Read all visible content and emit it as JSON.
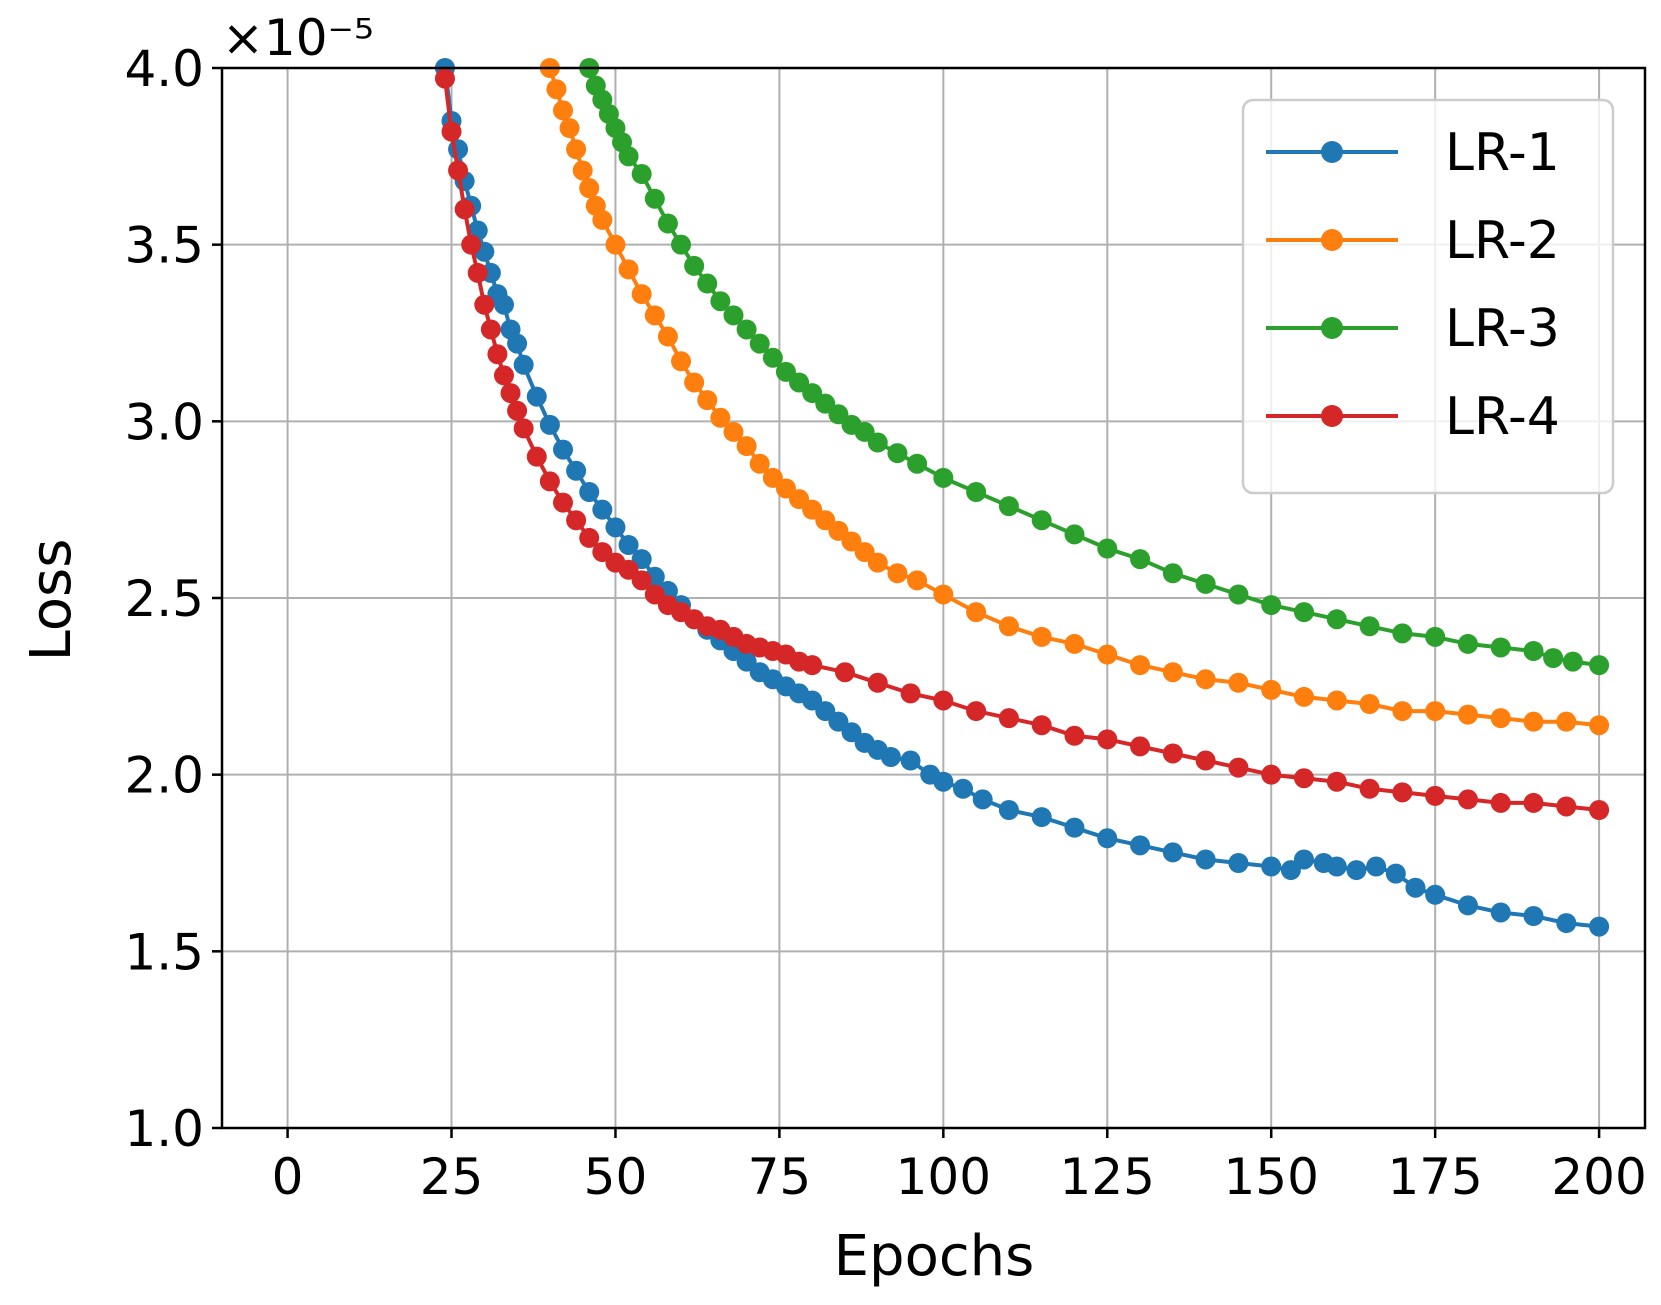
{
  "chart_data": {
    "type": "line",
    "xlabel": "Epochs",
    "ylabel": "Loss",
    "scale_label": "×10⁻⁵",
    "xlim": [
      -10,
      207
    ],
    "ylim": [
      1.0,
      4.0
    ],
    "xticks": [
      0,
      25,
      50,
      75,
      100,
      125,
      150,
      175,
      200
    ],
    "xtick_labels": [
      "0",
      "25",
      "50",
      "75",
      "100",
      "125",
      "150",
      "175",
      "200"
    ],
    "yticks": [
      1.0,
      1.5,
      2.0,
      2.5,
      3.0,
      3.5,
      4.0
    ],
    "ytick_labels": [
      "1.0",
      "1.5",
      "2.0",
      "2.5",
      "3.0",
      "3.5",
      "4.0"
    ],
    "grid": true,
    "legend_position": "top-right",
    "series": [
      {
        "name": "LR-1",
        "color": "#1f77b4",
        "points": [
          [
            24,
            4.0
          ],
          [
            25,
            3.85
          ],
          [
            26,
            3.77
          ],
          [
            27,
            3.68
          ],
          [
            28,
            3.61
          ],
          [
            29,
            3.54
          ],
          [
            30,
            3.48
          ],
          [
            31,
            3.42
          ],
          [
            32,
            3.36
          ],
          [
            33,
            3.33
          ],
          [
            34,
            3.26
          ],
          [
            35,
            3.22
          ],
          [
            36,
            3.16
          ],
          [
            38,
            3.07
          ],
          [
            40,
            2.99
          ],
          [
            42,
            2.92
          ],
          [
            44,
            2.86
          ],
          [
            46,
            2.8
          ],
          [
            48,
            2.75
          ],
          [
            50,
            2.7
          ],
          [
            52,
            2.65
          ],
          [
            54,
            2.61
          ],
          [
            56,
            2.56
          ],
          [
            58,
            2.52
          ],
          [
            60,
            2.48
          ],
          [
            62,
            2.44
          ],
          [
            64,
            2.41
          ],
          [
            66,
            2.38
          ],
          [
            68,
            2.35
          ],
          [
            70,
            2.32
          ],
          [
            72,
            2.29
          ],
          [
            74,
            2.27
          ],
          [
            76,
            2.25
          ],
          [
            78,
            2.23
          ],
          [
            80,
            2.21
          ],
          [
            82,
            2.18
          ],
          [
            84,
            2.15
          ],
          [
            86,
            2.12
          ],
          [
            88,
            2.09
          ],
          [
            90,
            2.07
          ],
          [
            92,
            2.05
          ],
          [
            95,
            2.04
          ],
          [
            98,
            2.0
          ],
          [
            100,
            1.98
          ],
          [
            103,
            1.96
          ],
          [
            106,
            1.93
          ],
          [
            110,
            1.9
          ],
          [
            115,
            1.88
          ],
          [
            120,
            1.85
          ],
          [
            125,
            1.82
          ],
          [
            130,
            1.8
          ],
          [
            135,
            1.78
          ],
          [
            140,
            1.76
          ],
          [
            145,
            1.75
          ],
          [
            150,
            1.74
          ],
          [
            153,
            1.73
          ],
          [
            155,
            1.76
          ],
          [
            158,
            1.75
          ],
          [
            160,
            1.74
          ],
          [
            163,
            1.73
          ],
          [
            166,
            1.74
          ],
          [
            169,
            1.72
          ],
          [
            172,
            1.68
          ],
          [
            175,
            1.66
          ],
          [
            180,
            1.63
          ],
          [
            185,
            1.61
          ],
          [
            190,
            1.6
          ],
          [
            195,
            1.58
          ],
          [
            200,
            1.57
          ]
        ]
      },
      {
        "name": "LR-2",
        "color": "#ff7f0e",
        "points": [
          [
            40,
            4.0
          ],
          [
            41,
            3.94
          ],
          [
            42,
            3.88
          ],
          [
            43,
            3.83
          ],
          [
            44,
            3.77
          ],
          [
            45,
            3.71
          ],
          [
            46,
            3.66
          ],
          [
            47,
            3.61
          ],
          [
            48,
            3.57
          ],
          [
            50,
            3.5
          ],
          [
            52,
            3.43
          ],
          [
            54,
            3.36
          ],
          [
            56,
            3.3
          ],
          [
            58,
            3.24
          ],
          [
            60,
            3.17
          ],
          [
            62,
            3.11
          ],
          [
            64,
            3.06
          ],
          [
            66,
            3.01
          ],
          [
            68,
            2.97
          ],
          [
            70,
            2.93
          ],
          [
            72,
            2.88
          ],
          [
            74,
            2.84
          ],
          [
            76,
            2.81
          ],
          [
            78,
            2.78
          ],
          [
            80,
            2.75
          ],
          [
            82,
            2.72
          ],
          [
            84,
            2.69
          ],
          [
            86,
            2.66
          ],
          [
            88,
            2.63
          ],
          [
            90,
            2.6
          ],
          [
            93,
            2.57
          ],
          [
            96,
            2.55
          ],
          [
            100,
            2.51
          ],
          [
            105,
            2.46
          ],
          [
            110,
            2.42
          ],
          [
            115,
            2.39
          ],
          [
            120,
            2.37
          ],
          [
            125,
            2.34
          ],
          [
            130,
            2.31
          ],
          [
            135,
            2.29
          ],
          [
            140,
            2.27
          ],
          [
            145,
            2.26
          ],
          [
            150,
            2.24
          ],
          [
            155,
            2.22
          ],
          [
            160,
            2.21
          ],
          [
            165,
            2.2
          ],
          [
            170,
            2.18
          ],
          [
            175,
            2.18
          ],
          [
            180,
            2.17
          ],
          [
            185,
            2.16
          ],
          [
            190,
            2.15
          ],
          [
            195,
            2.15
          ],
          [
            200,
            2.14
          ]
        ]
      },
      {
        "name": "LR-3",
        "color": "#2ca02c",
        "points": [
          [
            46,
            4.0
          ],
          [
            47,
            3.95
          ],
          [
            48,
            3.91
          ],
          [
            49,
            3.87
          ],
          [
            50,
            3.83
          ],
          [
            51,
            3.79
          ],
          [
            52,
            3.75
          ],
          [
            54,
            3.7
          ],
          [
            56,
            3.63
          ],
          [
            58,
            3.56
          ],
          [
            60,
            3.5
          ],
          [
            62,
            3.44
          ],
          [
            64,
            3.39
          ],
          [
            66,
            3.34
          ],
          [
            68,
            3.3
          ],
          [
            70,
            3.26
          ],
          [
            72,
            3.22
          ],
          [
            74,
            3.18
          ],
          [
            76,
            3.14
          ],
          [
            78,
            3.11
          ],
          [
            80,
            3.08
          ],
          [
            82,
            3.05
          ],
          [
            84,
            3.02
          ],
          [
            86,
            2.99
          ],
          [
            88,
            2.97
          ],
          [
            90,
            2.94
          ],
          [
            93,
            2.91
          ],
          [
            96,
            2.88
          ],
          [
            100,
            2.84
          ],
          [
            105,
            2.8
          ],
          [
            110,
            2.76
          ],
          [
            115,
            2.72
          ],
          [
            120,
            2.68
          ],
          [
            125,
            2.64
          ],
          [
            130,
            2.61
          ],
          [
            135,
            2.57
          ],
          [
            140,
            2.54
          ],
          [
            145,
            2.51
          ],
          [
            150,
            2.48
          ],
          [
            155,
            2.46
          ],
          [
            160,
            2.44
          ],
          [
            165,
            2.42
          ],
          [
            170,
            2.4
          ],
          [
            175,
            2.39
          ],
          [
            180,
            2.37
          ],
          [
            185,
            2.36
          ],
          [
            190,
            2.35
          ],
          [
            193,
            2.33
          ],
          [
            196,
            2.32
          ],
          [
            200,
            2.31
          ]
        ]
      },
      {
        "name": "LR-4",
        "color": "#d62728",
        "points": [
          [
            24,
            3.97
          ],
          [
            25,
            3.82
          ],
          [
            26,
            3.71
          ],
          [
            27,
            3.6
          ],
          [
            28,
            3.5
          ],
          [
            29,
            3.42
          ],
          [
            30,
            3.33
          ],
          [
            31,
            3.26
          ],
          [
            32,
            3.19
          ],
          [
            33,
            3.13
          ],
          [
            34,
            3.08
          ],
          [
            35,
            3.03
          ],
          [
            36,
            2.98
          ],
          [
            38,
            2.9
          ],
          [
            40,
            2.83
          ],
          [
            42,
            2.77
          ],
          [
            44,
            2.72
          ],
          [
            46,
            2.67
          ],
          [
            48,
            2.63
          ],
          [
            50,
            2.6
          ],
          [
            52,
            2.58
          ],
          [
            54,
            2.55
          ],
          [
            56,
            2.51
          ],
          [
            58,
            2.48
          ],
          [
            60,
            2.46
          ],
          [
            62,
            2.44
          ],
          [
            64,
            2.42
          ],
          [
            66,
            2.41
          ],
          [
            68,
            2.39
          ],
          [
            70,
            2.37
          ],
          [
            72,
            2.36
          ],
          [
            74,
            2.35
          ],
          [
            76,
            2.34
          ],
          [
            78,
            2.32
          ],
          [
            80,
            2.31
          ],
          [
            85,
            2.29
          ],
          [
            90,
            2.26
          ],
          [
            95,
            2.23
          ],
          [
            100,
            2.21
          ],
          [
            105,
            2.18
          ],
          [
            110,
            2.16
          ],
          [
            115,
            2.14
          ],
          [
            120,
            2.11
          ],
          [
            125,
            2.1
          ],
          [
            130,
            2.08
          ],
          [
            135,
            2.06
          ],
          [
            140,
            2.04
          ],
          [
            145,
            2.02
          ],
          [
            150,
            2.0
          ],
          [
            155,
            1.99
          ],
          [
            160,
            1.98
          ],
          [
            165,
            1.96
          ],
          [
            170,
            1.95
          ],
          [
            175,
            1.94
          ],
          [
            180,
            1.93
          ],
          [
            185,
            1.92
          ],
          [
            190,
            1.92
          ],
          [
            195,
            1.91
          ],
          [
            200,
            1.9
          ]
        ]
      }
    ]
  }
}
